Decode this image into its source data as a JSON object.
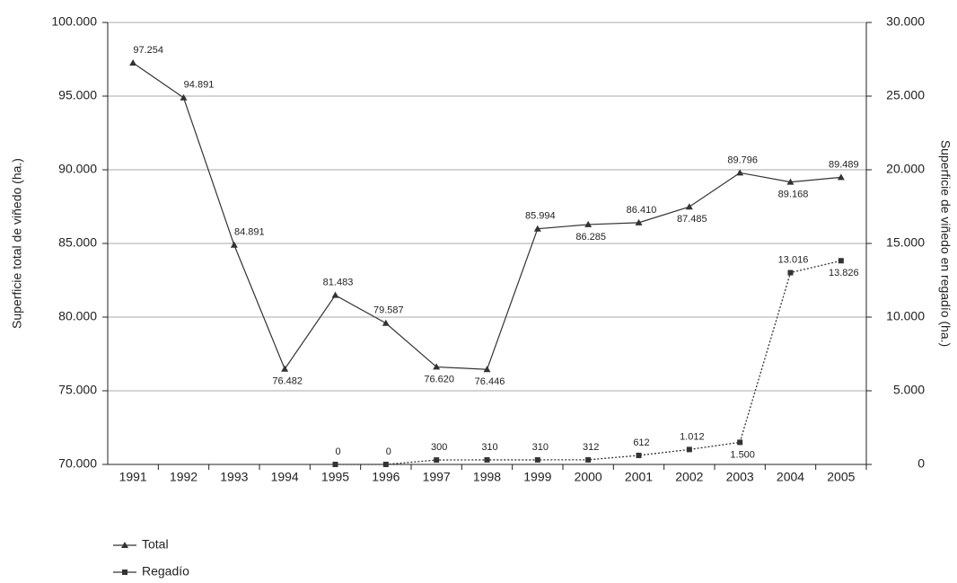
{
  "chart_data": {
    "type": "line",
    "categories": [
      "1991",
      "1992",
      "1993",
      "1994",
      "1995",
      "1996",
      "1997",
      "1998",
      "1999",
      "2000",
      "2001",
      "2002",
      "2003",
      "2004",
      "2005"
    ],
    "ylabel": "Superficie total de viñedo (ha.)",
    "y2label": "Superficie de viñedo en regadío (ha.)",
    "ylim": [
      70000,
      100000
    ],
    "yticks": [
      {
        "value": 70000,
        "label": "70.000"
      },
      {
        "value": 75000,
        "label": "75.000"
      },
      {
        "value": 80000,
        "label": "80.000"
      },
      {
        "value": 85000,
        "label": "85.000"
      },
      {
        "value": 90000,
        "label": "90.000"
      },
      {
        "value": 95000,
        "label": "95.000"
      },
      {
        "value": 100000,
        "label": "100.000"
      }
    ],
    "y2lim": [
      0,
      30000
    ],
    "y2ticks": [
      0,
      {
        "value": 5000,
        "label": "5.000"
      },
      {
        "value": 10000,
        "label": "10.000"
      },
      {
        "value": 15000,
        "label": "15.000"
      },
      {
        "value": 20000,
        "label": "20.000"
      },
      {
        "value": 25000,
        "label": "25.000"
      },
      {
        "value": 30000,
        "label": "30.000"
      }
    ],
    "grid": true,
    "legend": "bottom-left",
    "series": [
      {
        "name": "Total",
        "color": "#333333",
        "line_style": "solid",
        "marker": "triangle",
        "values": [
          97254,
          94891,
          84891,
          76482,
          81483,
          79587,
          76620,
          76446,
          85994,
          86285,
          86410,
          87485,
          89796,
          89168,
          89489
        ],
        "value_labels": [
          "97.254",
          "94.891",
          "84.891",
          "76.482",
          "81.483",
          "79.587",
          "76.620",
          "76.446",
          "85.994",
          "86.285",
          "86.410",
          "87.485",
          "89.796",
          "89.168",
          "89.489"
        ]
      },
      {
        "name": "Regadío",
        "color": "#333333",
        "line_style": "dotted",
        "marker": "square",
        "axis": "y2",
        "values": [
          null,
          null,
          null,
          null,
          0,
          0,
          300,
          310,
          310,
          312,
          612,
          1012,
          1500,
          13016,
          13826
        ],
        "value_labels": [
          null,
          null,
          null,
          null,
          "0",
          "0",
          "300",
          "310",
          "310",
          "312",
          "612",
          "1.012",
          "1.500",
          "13.016",
          "13.826"
        ]
      }
    ]
  }
}
